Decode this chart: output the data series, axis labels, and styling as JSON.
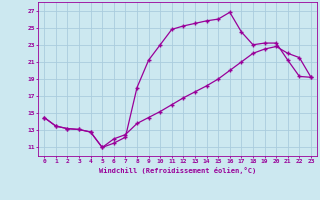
{
  "xlabel": "Windchill (Refroidissement éolien,°C)",
  "background_color": "#cce8f0",
  "grid_color": "#aaccdd",
  "line_color": "#990099",
  "xlim": [
    -0.5,
    23.5
  ],
  "ylim": [
    10,
    28
  ],
  "yticks": [
    11,
    13,
    15,
    17,
    19,
    21,
    23,
    25,
    27
  ],
  "xticks": [
    0,
    1,
    2,
    3,
    4,
    5,
    6,
    7,
    8,
    9,
    10,
    11,
    12,
    13,
    14,
    15,
    16,
    17,
    18,
    19,
    20,
    21,
    22,
    23
  ],
  "line1_x": [
    0,
    1,
    2,
    3,
    4,
    5,
    6,
    7,
    8,
    9,
    10,
    11,
    12,
    13,
    14,
    15,
    16,
    17,
    18,
    19,
    20,
    21,
    22,
    23
  ],
  "line1_y": [
    14.5,
    13.5,
    13.2,
    13.1,
    12.8,
    11.0,
    11.5,
    12.2,
    18.0,
    21.2,
    23.0,
    24.8,
    25.2,
    25.5,
    25.8,
    26.0,
    26.8,
    24.5,
    23.0,
    23.2,
    23.2,
    21.2,
    19.3,
    19.2
  ],
  "line2_x": [
    0,
    1,
    2,
    3,
    4,
    5,
    6,
    7,
    8,
    9,
    10,
    11,
    12,
    13,
    14,
    15,
    16,
    17,
    18,
    19,
    20,
    21,
    22,
    23
  ],
  "line2_y": [
    14.5,
    13.5,
    13.2,
    13.1,
    12.8,
    11.0,
    12.0,
    12.5,
    13.8,
    14.5,
    15.2,
    16.0,
    16.8,
    17.5,
    18.2,
    19.0,
    20.0,
    21.0,
    22.0,
    22.5,
    22.8,
    22.0,
    21.5,
    19.2
  ]
}
